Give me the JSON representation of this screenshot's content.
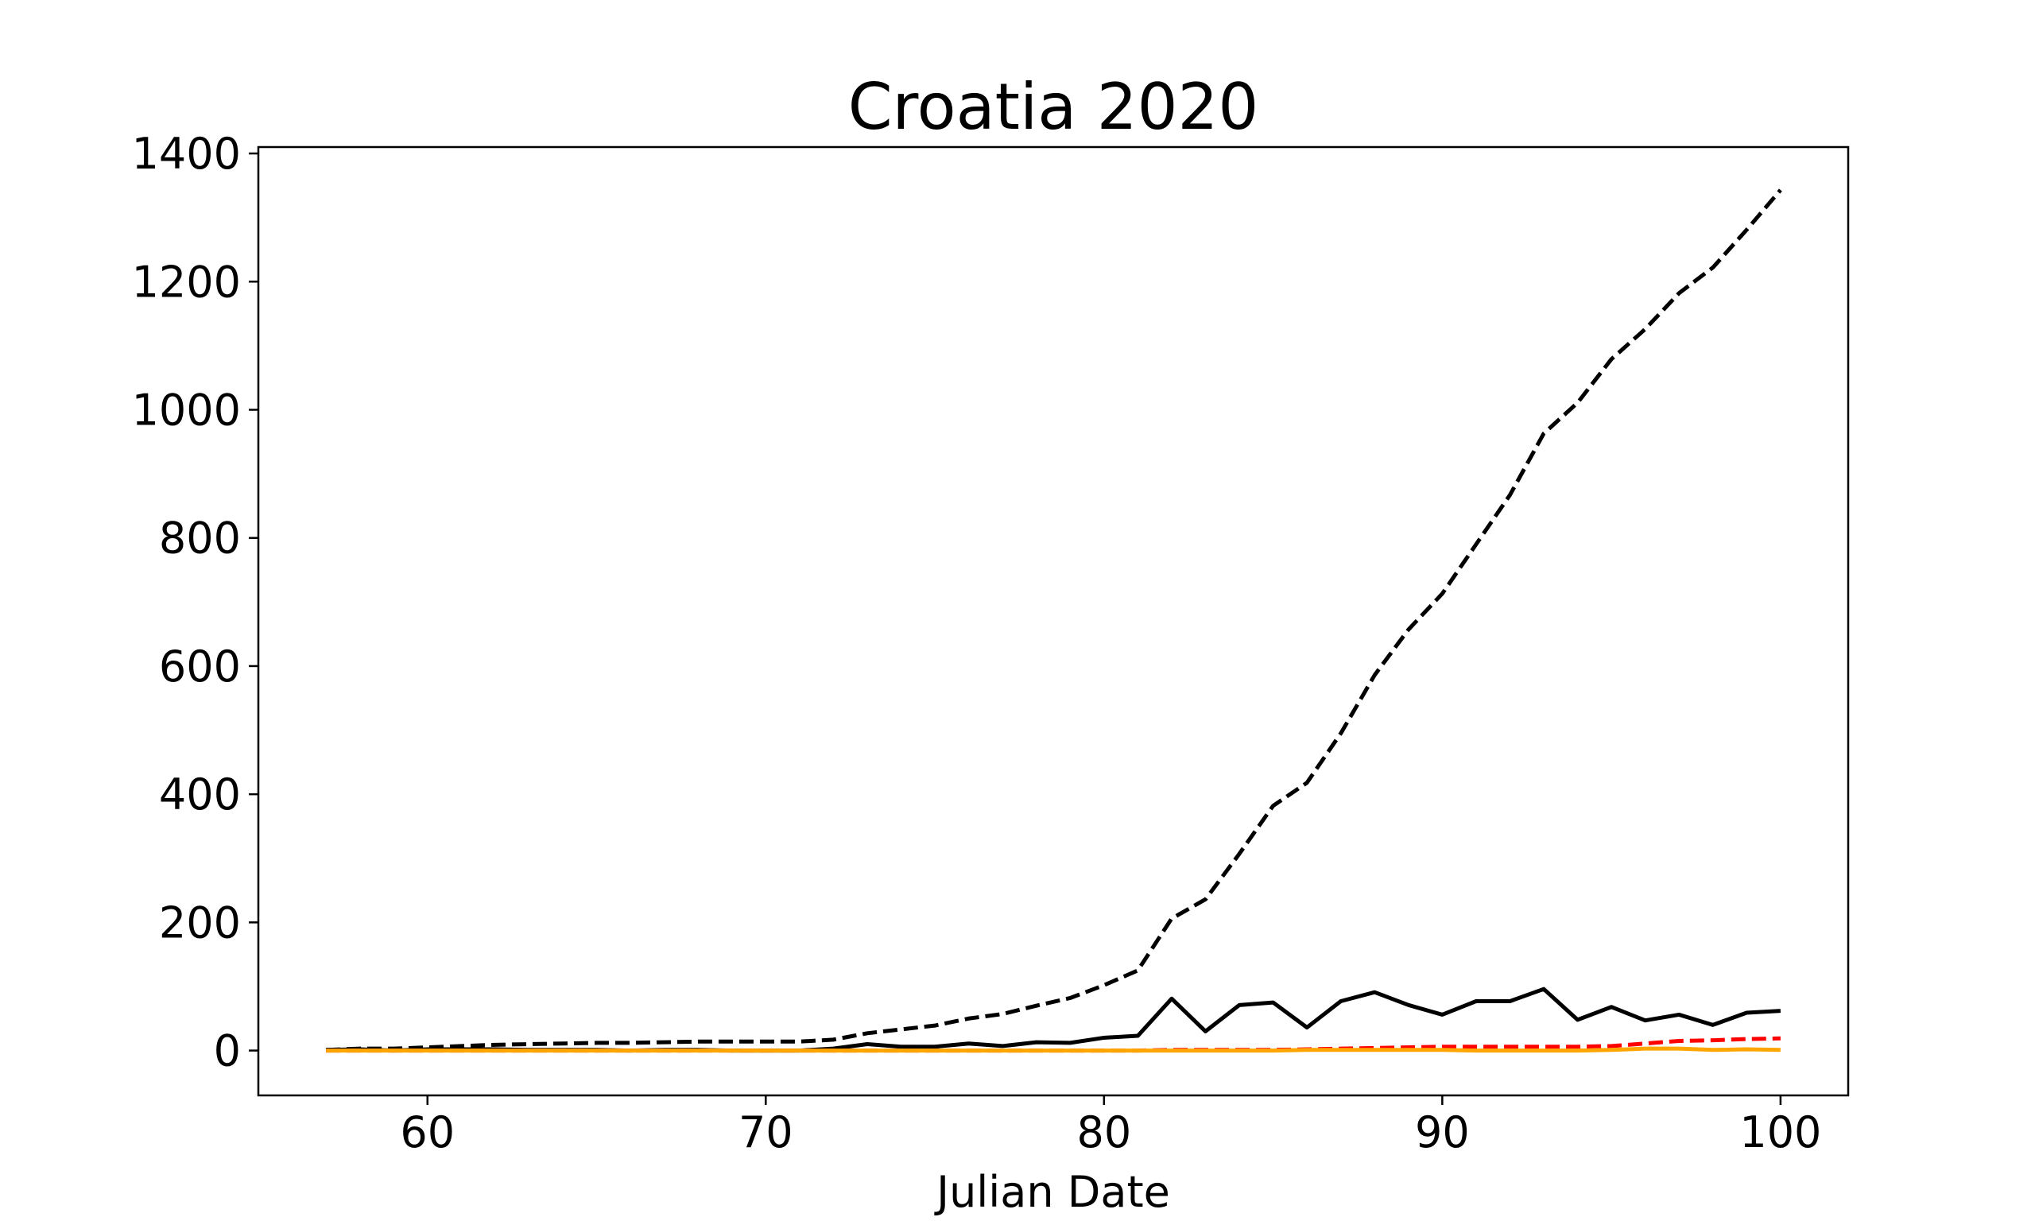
{
  "chart_data": {
    "type": "line",
    "title": "Croatia 2020",
    "xlabel": "Julian Date",
    "ylabel": "",
    "xlim": [
      55,
      102
    ],
    "ylim": [
      -70,
      1410
    ],
    "xticks": [
      60,
      70,
      80,
      90,
      100
    ],
    "yticks": [
      0,
      200,
      400,
      600,
      800,
      1000,
      1200,
      1400
    ],
    "grid": false,
    "x": [
      57,
      58,
      59,
      60,
      61,
      62,
      63,
      64,
      65,
      66,
      67,
      68,
      69,
      70,
      71,
      72,
      73,
      74,
      75,
      76,
      77,
      78,
      79,
      80,
      81,
      82,
      83,
      84,
      85,
      86,
      87,
      88,
      89,
      90,
      91,
      92,
      93,
      94,
      95,
      96,
      97,
      98,
      99,
      100
    ],
    "series": [
      {
        "color": "#000000",
        "style": "dashed",
        "values": [
          1,
          3,
          3,
          5,
          7,
          9,
          10,
          11,
          12,
          12,
          13,
          14,
          14,
          14,
          14,
          17,
          27,
          33,
          39,
          50,
          57,
          70,
          82,
          102,
          125,
          206,
          236,
          307,
          382,
          418,
          495,
          586,
          657,
          713,
          790,
          867,
          963,
          1011,
          1079,
          1126,
          1182,
          1222,
          1281,
          1343
        ]
      },
      {
        "color": "#000000",
        "style": "solid",
        "values": [
          1,
          2,
          0,
          2,
          2,
          2,
          1,
          1,
          1,
          0,
          1,
          1,
          0,
          0,
          0,
          3,
          10,
          6,
          6,
          11,
          7,
          13,
          12,
          20,
          23,
          81,
          30,
          71,
          75,
          36,
          77,
          91,
          71,
          56,
          77,
          77,
          96,
          48,
          68,
          47,
          56,
          40,
          59,
          62
        ]
      },
      {
        "color": "#ff0000",
        "style": "dashed",
        "values": [
          0,
          0,
          0,
          0,
          0,
          0,
          0,
          0,
          0,
          0,
          0,
          0,
          0,
          0,
          0,
          0,
          0,
          0,
          0,
          0,
          0,
          0,
          0,
          0,
          0,
          1,
          1,
          1,
          1,
          2,
          3,
          4,
          5,
          6,
          6,
          6,
          6,
          6,
          7,
          11,
          15,
          16,
          18,
          19
        ]
      },
      {
        "color": "#ffa500",
        "style": "solid",
        "values": [
          0,
          0,
          0,
          0,
          0,
          0,
          0,
          0,
          0,
          0,
          0,
          0,
          0,
          0,
          0,
          0,
          0,
          0,
          0,
          0,
          0,
          0,
          0,
          0,
          0,
          0,
          0,
          0,
          0,
          1,
          1,
          1,
          1,
          1,
          0,
          0,
          0,
          0,
          1,
          3,
          3,
          1,
          2,
          1
        ]
      }
    ]
  }
}
